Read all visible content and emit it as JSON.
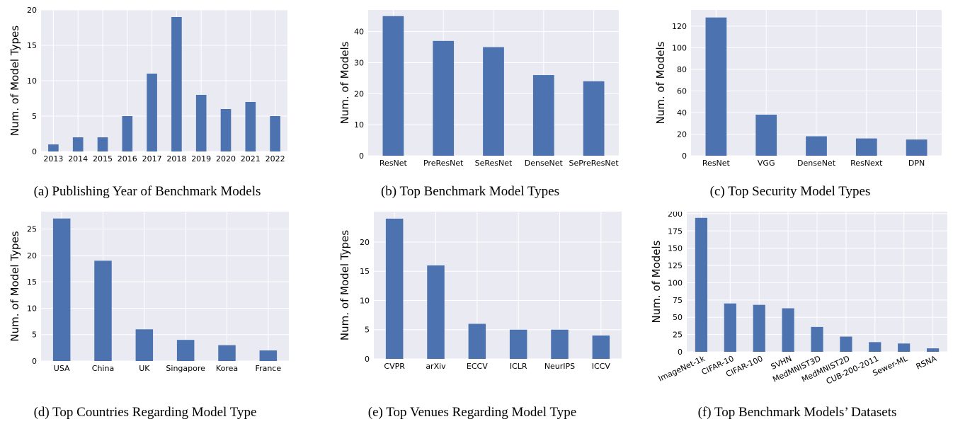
{
  "style": {
    "bar_color": "#4c72b0",
    "plot_bg": "#eaeaf2",
    "grid_color": "#ffffff",
    "text_color": "#000000"
  },
  "chart_data": [
    {
      "id": "a",
      "type": "bar",
      "caption": "(a) Publishing Year of Benchmark Models",
      "ylabel": "Num. of Model Types",
      "categories": [
        "2013",
        "2014",
        "2015",
        "2016",
        "2017",
        "2018",
        "2019",
        "2020",
        "2021",
        "2022"
      ],
      "values": [
        1,
        2,
        2,
        5,
        11,
        19,
        8,
        6,
        7,
        5
      ],
      "ylim": [
        0,
        20
      ],
      "yticks": [
        0,
        5,
        10,
        15,
        20
      ],
      "grid": true,
      "xtick_rotation": 0
    },
    {
      "id": "b",
      "type": "bar",
      "caption": "(b) Top Benchmark Model Types",
      "ylabel": "Num. of Models",
      "categories": [
        "ResNet",
        "PreResNet",
        "SeResNet",
        "DenseNet",
        "SePreResNet"
      ],
      "values": [
        45,
        37,
        35,
        26,
        24
      ],
      "ylim": [
        0,
        47
      ],
      "yticks": [
        0,
        10,
        20,
        30,
        40
      ],
      "grid": true,
      "xtick_rotation": 0
    },
    {
      "id": "c",
      "type": "bar",
      "caption": "(c) Top Security Model Types",
      "ylabel": "Num. of Models",
      "categories": [
        "ResNet",
        "VGG",
        "DenseNet",
        "ResNext",
        "DPN"
      ],
      "values": [
        128,
        38,
        18,
        16,
        15
      ],
      "ylim": [
        0,
        135
      ],
      "yticks": [
        0,
        20,
        40,
        60,
        80,
        100,
        120
      ],
      "grid": true,
      "xtick_rotation": 0
    },
    {
      "id": "d",
      "type": "bar",
      "caption": "(d) Top Countries Regarding Model Type",
      "ylabel": "Num. of Model Types",
      "categories": [
        "USA",
        "China",
        "UK",
        "Singapore",
        "Korea",
        "France"
      ],
      "values": [
        27,
        19,
        6,
        4,
        3,
        2
      ],
      "ylim": [
        0,
        28.3
      ],
      "yticks": [
        0,
        5,
        10,
        15,
        20,
        25
      ],
      "grid": true,
      "xtick_rotation": 0
    },
    {
      "id": "e",
      "type": "bar",
      "caption": "(e) Top Venues Regarding Model Type",
      "ylabel": "Num. of Model Types",
      "categories": [
        "CVPR",
        "arXiv",
        "ECCV",
        "ICLR",
        "NeurIPS",
        "ICCV"
      ],
      "values": [
        24,
        16,
        6,
        5,
        5,
        4
      ],
      "ylim": [
        0,
        25.2
      ],
      "yticks": [
        0,
        5,
        10,
        15,
        20
      ],
      "grid": true,
      "xtick_rotation": 0
    },
    {
      "id": "f",
      "type": "bar",
      "caption": "(f) Top Benchmark Models’ Datasets",
      "ylabel": "Num. of Models",
      "categories": [
        "ImageNet-1k",
        "CIFAR-10",
        "CIFAR-100",
        "SVHN",
        "MedMNIST3D",
        "MedMNIST2D",
        "CUB-200-2011",
        "Sewer-ML",
        "RSNA"
      ],
      "values": [
        194,
        70,
        68,
        63,
        36,
        22,
        14,
        12,
        5
      ],
      "ylim": [
        0,
        203
      ],
      "yticks": [
        0,
        25,
        50,
        75,
        100,
        125,
        150,
        175,
        200
      ],
      "grid": true,
      "xtick_rotation": 25
    }
  ]
}
